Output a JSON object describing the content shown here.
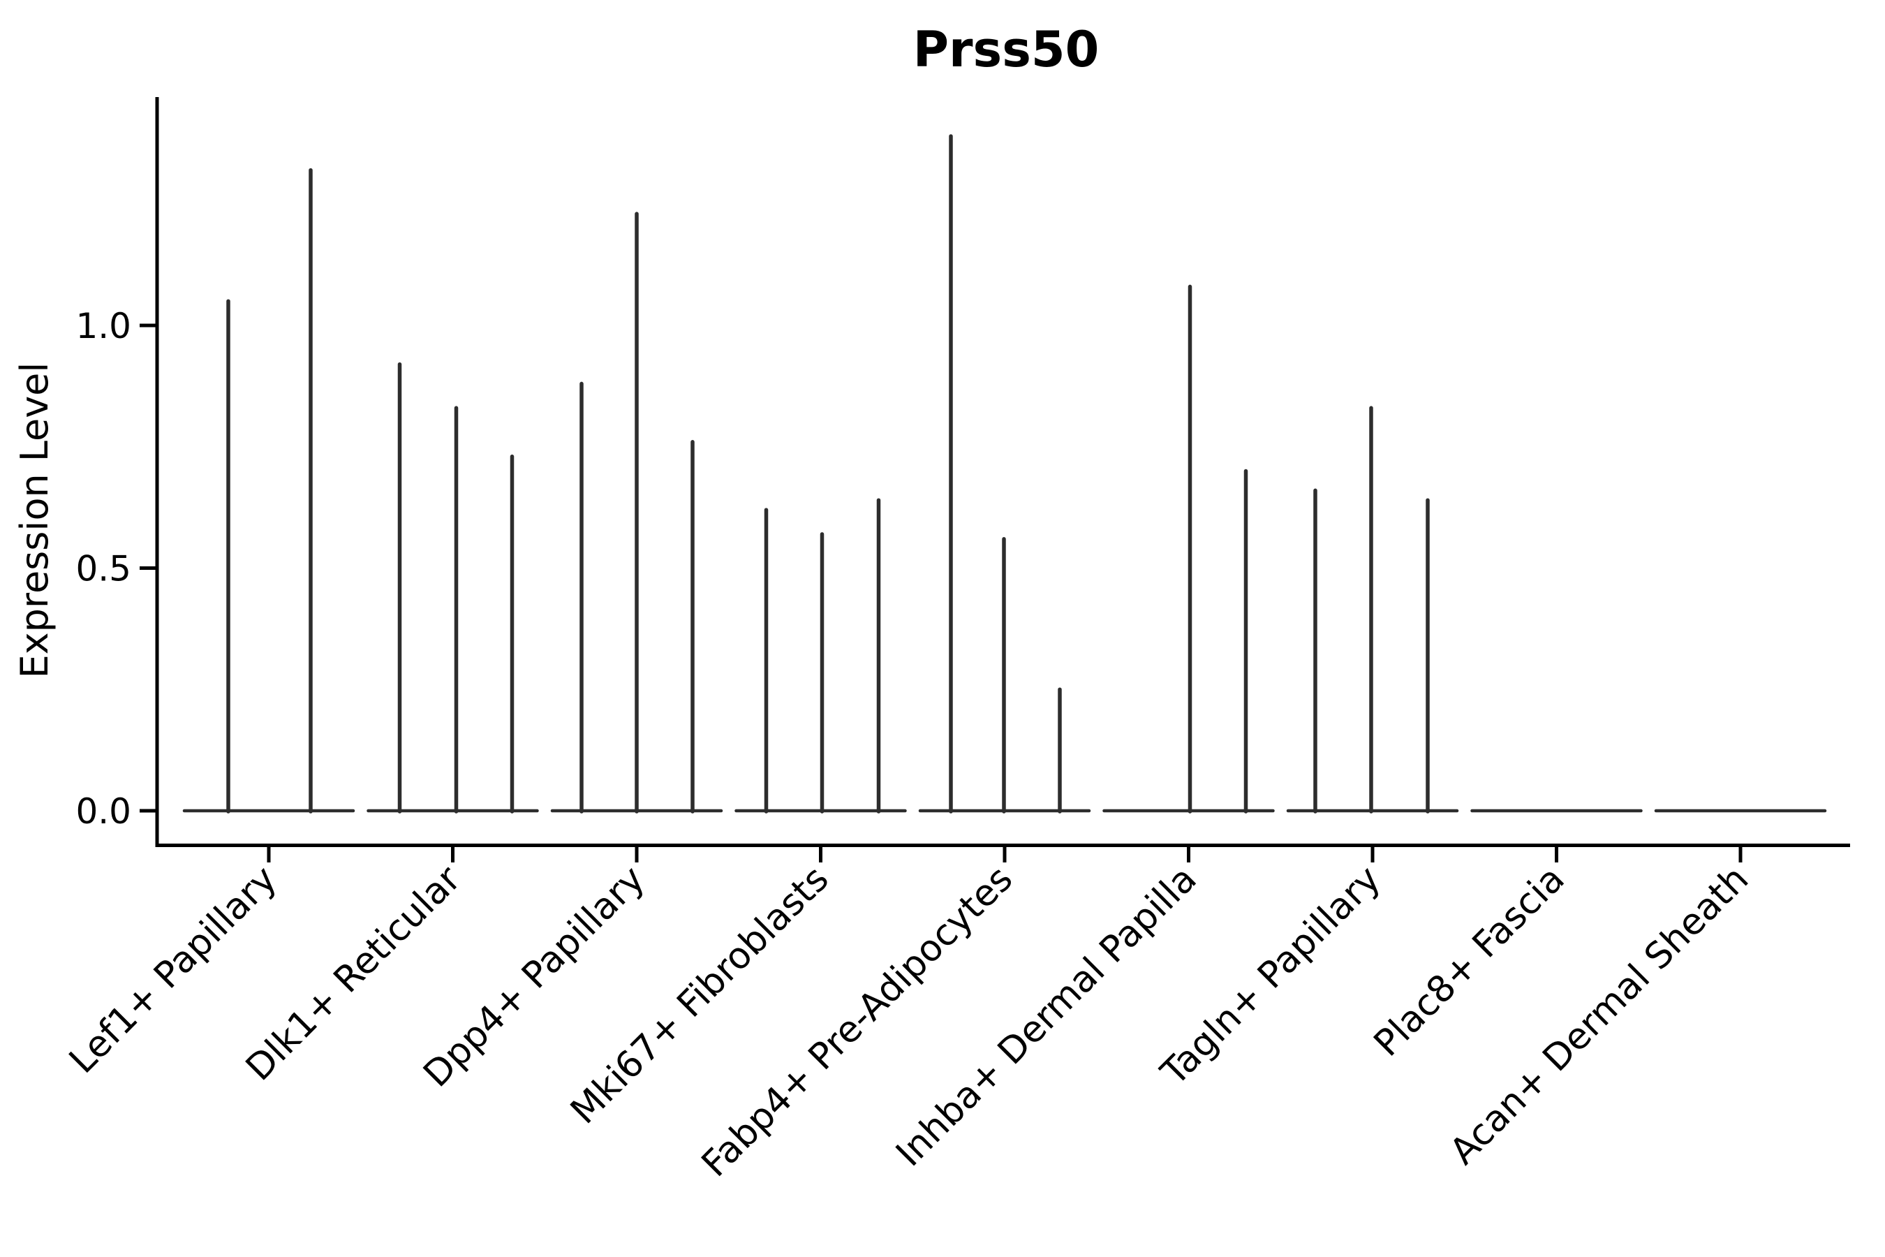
{
  "title": "Prss50",
  "axes": {
    "y_label": "Expression Level",
    "y_tick_labels": [
      "0.0",
      "0.5",
      "1.0"
    ]
  },
  "colors": {
    "violin": "#2d2d2d",
    "axis": "#000000",
    "background": "#ffffff"
  },
  "chart_data": {
    "type": "violin",
    "title": "Prss50",
    "xlabel": "",
    "ylabel": "Expression Level",
    "ylim": [
      0,
      1.47
    ],
    "yticks": [
      0.0,
      0.5,
      1.0
    ],
    "grid": false,
    "legend_position": "none",
    "note": "Collapsed violin plot: each category shows a flat density baseline at expression 0 with thin density spikes at expressing-cell values; spike dx is the horizontal pixel offset of each spike from the category center",
    "categories": [
      "Lef1+ Papillary",
      "Dlk1+ Reticular",
      "Dpp4+ Papillary",
      "Mki67+ Fibroblasts",
      "Fabp4+ Pre-Adipocytes",
      "Inhba+ Dermal Papilla",
      "Tagln+ Papillary",
      "Plac8+ Fascia",
      "Acan+ Dermal Sheath"
    ],
    "groups": [
      {
        "category": "Lef1+ Papillary",
        "baseline_value": 0,
        "max_spike": 1.32,
        "spikes": [
          {
            "dx": -58,
            "value": 1.05
          },
          {
            "dx": 60,
            "value": 1.32
          }
        ]
      },
      {
        "category": "Dlk1+ Reticular",
        "baseline_value": 0,
        "max_spike": 0.92,
        "spikes": [
          {
            "dx": -76,
            "value": 0.92
          },
          {
            "dx": 5,
            "value": 0.83
          },
          {
            "dx": 85,
            "value": 0.73
          }
        ]
      },
      {
        "category": "Dpp4+ Papillary",
        "baseline_value": 0,
        "max_spike": 1.23,
        "spikes": [
          {
            "dx": -79,
            "value": 0.88
          },
          {
            "dx": 0,
            "value": 1.23
          },
          {
            "dx": 80,
            "value": 0.76
          }
        ]
      },
      {
        "category": "Mki67+ Fibroblasts",
        "baseline_value": 0,
        "max_spike": 0.64,
        "spikes": [
          {
            "dx": -78,
            "value": 0.62
          },
          {
            "dx": 2,
            "value": 0.57
          },
          {
            "dx": 83,
            "value": 0.64
          }
        ]
      },
      {
        "category": "Fabp4+ Pre-Adipocytes",
        "baseline_value": 0,
        "max_spike": 1.39,
        "spikes": [
          {
            "dx": -77,
            "value": 1.39
          },
          {
            "dx": -1,
            "value": 0.56
          },
          {
            "dx": 79,
            "value": 0.25
          }
        ]
      },
      {
        "category": "Inhba+ Dermal Papilla",
        "baseline_value": 0,
        "max_spike": 1.08,
        "spikes": [
          {
            "dx": 2,
            "value": 1.08
          },
          {
            "dx": 82,
            "value": 0.7
          }
        ]
      },
      {
        "category": "Tagln+ Papillary",
        "baseline_value": 0,
        "max_spike": 0.83,
        "spikes": [
          {
            "dx": -82,
            "value": 0.66
          },
          {
            "dx": -2,
            "value": 0.83
          },
          {
            "dx": 79,
            "value": 0.64
          }
        ]
      },
      {
        "category": "Plac8+ Fascia",
        "baseline_value": 0,
        "max_spike": 0,
        "spikes": []
      },
      {
        "category": "Acan+ Dermal Sheath",
        "baseline_value": 0,
        "max_spike": 0,
        "spikes": []
      }
    ]
  }
}
